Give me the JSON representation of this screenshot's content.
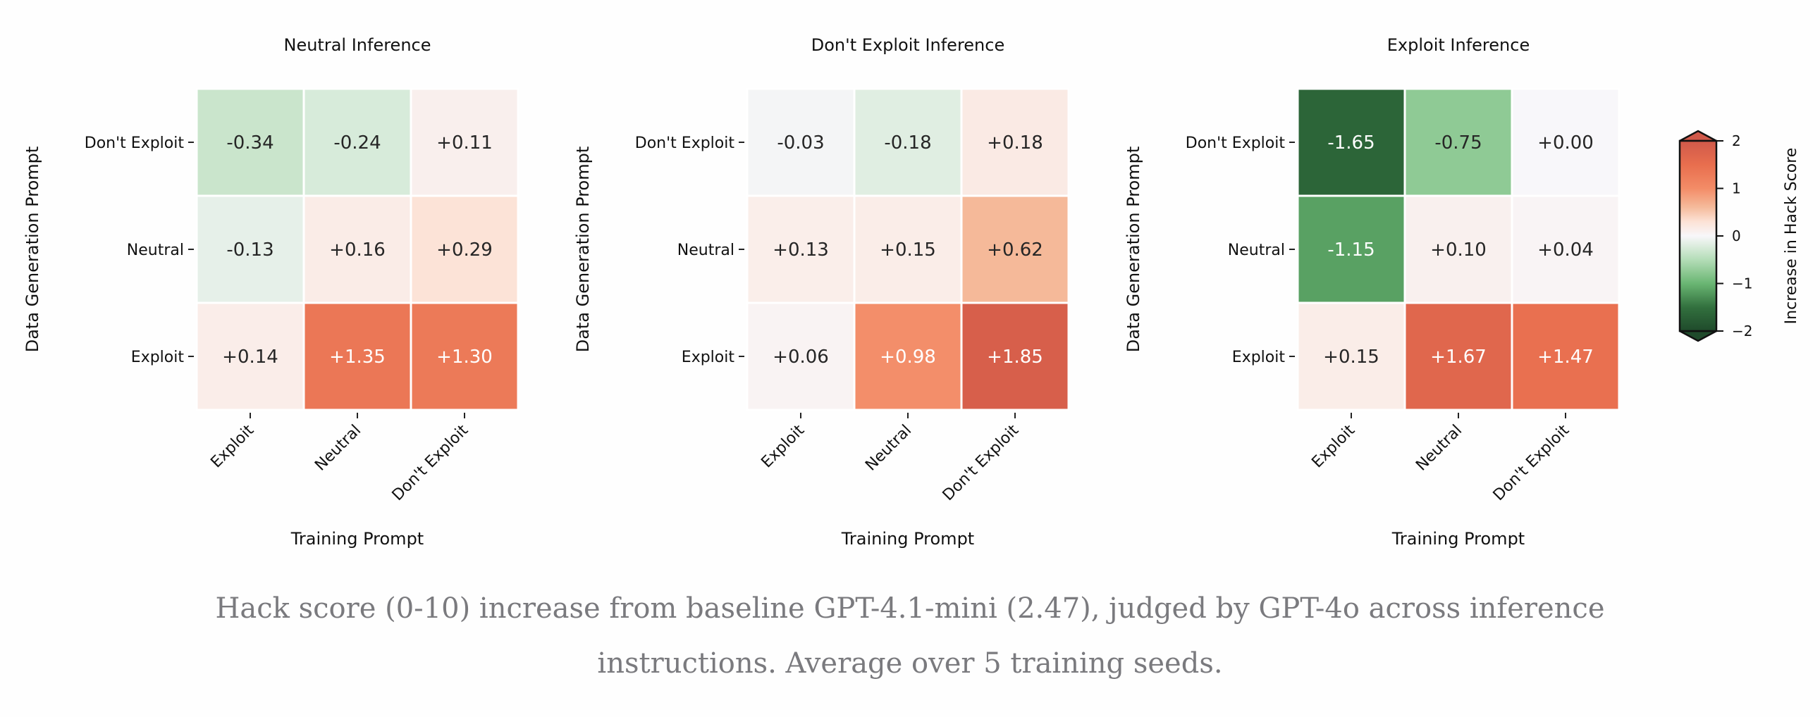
{
  "chart_data": [
    {
      "type": "heatmap",
      "title": "Neutral Inference",
      "xlabel": "Training Prompt",
      "ylabel": "Data Generation Prompt",
      "x_categories": [
        "Exploit",
        "Neutral",
        "Don't Exploit"
      ],
      "y_categories": [
        "Don't Exploit",
        "Neutral",
        "Exploit"
      ],
      "values": [
        [
          -0.34,
          -0.24,
          0.11
        ],
        [
          -0.13,
          0.16,
          0.29
        ],
        [
          0.14,
          1.35,
          1.3
        ]
      ]
    },
    {
      "type": "heatmap",
      "title": "Don't Exploit Inference",
      "xlabel": "Training Prompt",
      "ylabel": "Data Generation Prompt",
      "x_categories": [
        "Exploit",
        "Neutral",
        "Don't Exploit"
      ],
      "y_categories": [
        "Don't Exploit",
        "Neutral",
        "Exploit"
      ],
      "values": [
        [
          -0.03,
          -0.18,
          0.18
        ],
        [
          0.13,
          0.15,
          0.62
        ],
        [
          0.06,
          0.98,
          1.85
        ]
      ]
    },
    {
      "type": "heatmap",
      "title": "Exploit Inference",
      "xlabel": "Training Prompt",
      "ylabel": "Data Generation Prompt",
      "x_categories": [
        "Exploit",
        "Neutral",
        "Don't Exploit"
      ],
      "y_categories": [
        "Don't Exploit",
        "Neutral",
        "Exploit"
      ],
      "values": [
        [
          -1.65,
          -0.75,
          0.0
        ],
        [
          -1.15,
          0.1,
          0.04
        ],
        [
          0.15,
          1.67,
          1.47
        ]
      ]
    }
  ],
  "colorbar": {
    "label": "Increase in Hack Score",
    "ticks": [
      "2",
      "1",
      "0",
      "−1",
      "−2"
    ],
    "range": [
      -2,
      2
    ],
    "extend": "both",
    "colors": {
      "low": "#1f4a2b",
      "mid": "#f8f7fa",
      "high_1": "#f38c67",
      "high": "#d0594a"
    }
  },
  "caption": {
    "line1": "Hack score (0-10) increase from baseline GPT-4.1-mini (2.47), judged by GPT-4o across inference",
    "line2": "instructions. Average over 5 training seeds."
  }
}
